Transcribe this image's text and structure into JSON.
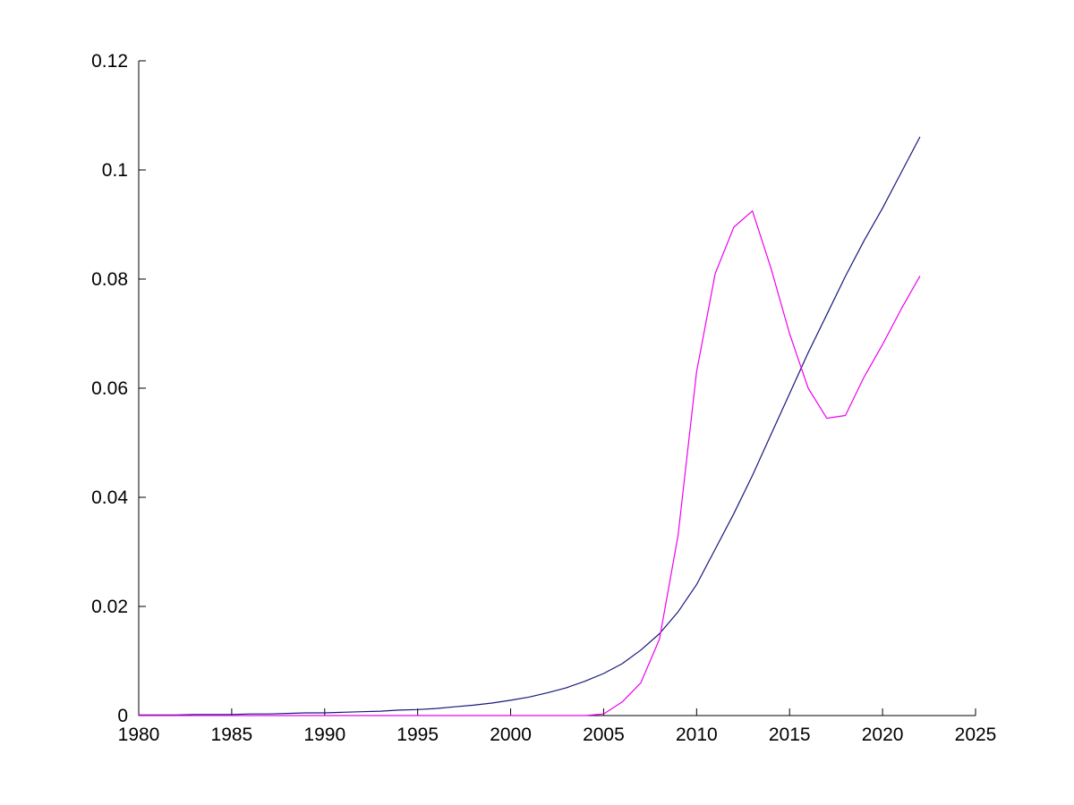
{
  "figure": {
    "background": "#ffffff"
  },
  "chart_data": {
    "type": "line",
    "title": "",
    "xlabel": "",
    "ylabel": "",
    "xlim": [
      1980,
      2025
    ],
    "ylim": [
      0,
      0.12
    ],
    "grid": false,
    "legend": "none",
    "box": false,
    "axis_color": "#000000",
    "x_ticks": [
      1980,
      1985,
      1990,
      1995,
      2000,
      2005,
      2010,
      2015,
      2020,
      2025
    ],
    "x_tick_labels": [
      "1980",
      "1985",
      "1990",
      "1995",
      "2000",
      "2005",
      "2010",
      "2015",
      "2020",
      "2025"
    ],
    "y_ticks": [
      0,
      0.02,
      0.04,
      0.06,
      0.08,
      0.1,
      0.12
    ],
    "y_tick_labels": [
      "0",
      "0.02",
      "0.04",
      "0.06",
      "0.08",
      "0.1",
      "0.12"
    ],
    "x": [
      1980,
      1981,
      1982,
      1983,
      1984,
      1985,
      1986,
      1987,
      1988,
      1989,
      1990,
      1991,
      1992,
      1993,
      1994,
      1995,
      1996,
      1997,
      1998,
      1999,
      2000,
      2001,
      2002,
      2003,
      2004,
      2005,
      2006,
      2007,
      2008,
      2009,
      2010,
      2011,
      2012,
      2013,
      2014,
      2015,
      2016,
      2017,
      2018,
      2019,
      2020,
      2021,
      2022
    ],
    "series": [
      {
        "name": "blue-line",
        "color": "#18187a",
        "values": [
          0.0001,
          0.0001,
          0.0001,
          0.0002,
          0.0002,
          0.0002,
          0.0003,
          0.0003,
          0.0004,
          0.0005,
          0.0005,
          0.0006,
          0.0007,
          0.0008,
          0.001,
          0.0011,
          0.0013,
          0.0016,
          0.0019,
          0.0023,
          0.0028,
          0.0034,
          0.0042,
          0.0051,
          0.0063,
          0.0077,
          0.0095,
          0.012,
          0.015,
          0.019,
          0.024,
          0.0305,
          0.037,
          0.044,
          0.0515,
          0.059,
          0.0665,
          0.0735,
          0.0805,
          0.087,
          0.093,
          0.0995,
          0.106
        ]
      },
      {
        "name": "magenta-line",
        "color": "#ee00ee",
        "values": [
          0,
          0,
          0,
          0,
          0,
          0,
          0,
          0,
          0,
          0,
          0,
          0,
          0,
          0,
          0,
          0,
          0,
          0,
          0,
          0,
          0,
          0,
          0,
          0,
          0,
          0.0003,
          0.0025,
          0.006,
          0.014,
          0.033,
          0.063,
          0.081,
          0.0895,
          0.0925,
          0.082,
          0.07,
          0.06,
          0.0545,
          0.055,
          0.062,
          0.068,
          0.0745,
          0.0805
        ]
      }
    ]
  }
}
